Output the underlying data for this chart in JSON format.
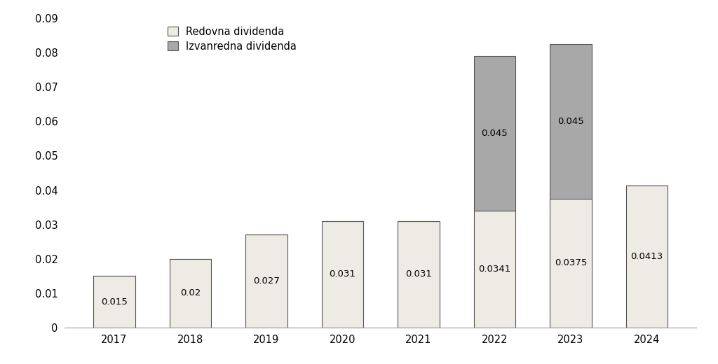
{
  "years": [
    2017,
    2018,
    2019,
    2020,
    2021,
    2022,
    2023,
    2024
  ],
  "regular_dividends": [
    0.015,
    0.02,
    0.027,
    0.031,
    0.031,
    0.0341,
    0.0375,
    0.0413
  ],
  "special_dividends": [
    0,
    0,
    0,
    0,
    0,
    0.045,
    0.045,
    0
  ],
  "regular_labels": [
    "0.015",
    "0.02",
    "0.027",
    "0.031",
    "0.031",
    "0.0341",
    "0.0375",
    "0.0413"
  ],
  "special_labels": [
    "",
    "",
    "",
    "",
    "",
    "0.045",
    "0.045",
    ""
  ],
  "regular_color": "#eeebe4",
  "special_color": "#a8a8a8",
  "bar_edge_color": "#555555",
  "ylim": [
    0,
    0.09
  ],
  "yticks": [
    0,
    0.01,
    0.02,
    0.03,
    0.04,
    0.05,
    0.06,
    0.07,
    0.08,
    0.09
  ],
  "ytick_labels": [
    "0",
    "0.01",
    "0.02",
    "0.03",
    "0.04",
    "0.05",
    "0.06",
    "0.07",
    "0.08",
    "0.09"
  ],
  "legend_regular": "Redovna dividenda",
  "legend_special": "Izvanredna dividenda",
  "background_color": "#ffffff",
  "label_fontsize": 9.5,
  "tick_fontsize": 10.5,
  "legend_fontsize": 10.5,
  "bar_width": 0.55
}
